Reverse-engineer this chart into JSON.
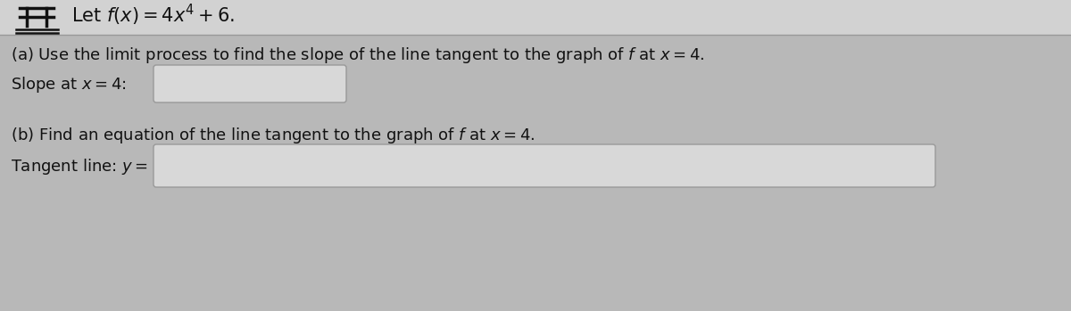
{
  "background_color": "#b8b8b8",
  "header_bg": "#d0d0d0",
  "title_line": "Let $f(x) = 4x^4 + 6$.",
  "part_a_text": "(a) Use the limit process to find the slope of the line tangent to the graph of $f$ at $x = 4$.",
  "slope_label": "Slope at $x = 4$:",
  "part_b_text": "(b) Find an equation of the line tangent to the graph of $f$ at $x = 4$.",
  "tangent_label": "Tangent line: $y =$",
  "text_color": "#111111",
  "box_fill": "#d8d8d8",
  "box_edge": "#999999",
  "font_size_title": 15,
  "font_size_body": 13,
  "font_size_icon": 16
}
